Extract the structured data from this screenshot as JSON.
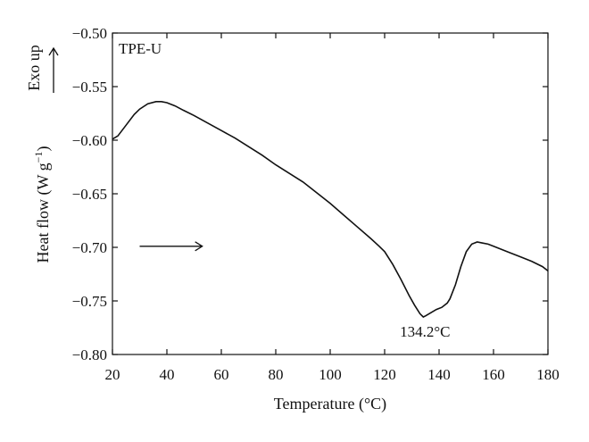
{
  "chart_data": {
    "type": "line",
    "title": "",
    "series_label": "TPE-U",
    "xlabel": "Temperature (°C)",
    "ylabel_main": "Heat flow (W g",
    "ylabel_sup": "−1",
    "ylabel_close": ")",
    "exo_label": "Exo up",
    "peak_label": "134.2°C",
    "peak": {
      "x": 134.2,
      "y": -0.765
    },
    "direction_arrow": {
      "x_start": 30,
      "x_end": 53,
      "y": -0.699
    },
    "xlim": [
      20,
      180
    ],
    "ylim": [
      -0.8,
      -0.5
    ],
    "xticks": [
      20,
      40,
      60,
      80,
      100,
      120,
      140,
      160,
      180
    ],
    "yticks": [
      -0.5,
      -0.55,
      -0.6,
      -0.65,
      -0.7,
      -0.75,
      -0.8
    ],
    "xtick_labels": [
      "20",
      "40",
      "60",
      "80",
      "100",
      "120",
      "140",
      "160",
      "180"
    ],
    "ytick_labels": [
      "−0.50",
      "−0.55",
      "−0.60",
      "−0.65",
      "−0.70",
      "−0.75",
      "−0.80"
    ],
    "grid": false,
    "x": [
      20,
      22,
      25,
      28,
      30,
      33,
      36,
      38,
      40,
      43,
      46,
      50,
      55,
      60,
      65,
      70,
      75,
      80,
      85,
      90,
      95,
      100,
      105,
      110,
      115,
      118,
      120,
      123,
      126,
      129,
      131,
      133,
      134.2,
      135,
      137,
      139,
      141,
      143,
      144,
      146,
      148,
      150,
      152,
      154,
      156,
      158,
      160,
      163,
      166,
      170,
      174,
      178,
      180
    ],
    "y": [
      -0.599,
      -0.596,
      -0.586,
      -0.576,
      -0.571,
      -0.566,
      -0.564,
      -0.564,
      -0.565,
      -0.568,
      -0.572,
      -0.577,
      -0.584,
      -0.591,
      -0.598,
      -0.606,
      -0.614,
      -0.623,
      -0.631,
      -0.639,
      -0.649,
      -0.659,
      -0.67,
      -0.681,
      -0.692,
      -0.699,
      -0.704,
      -0.716,
      -0.73,
      -0.745,
      -0.754,
      -0.762,
      -0.765,
      -0.764,
      -0.761,
      -0.758,
      -0.756,
      -0.752,
      -0.748,
      -0.735,
      -0.718,
      -0.704,
      -0.697,
      -0.695,
      -0.696,
      -0.697,
      -0.699,
      -0.702,
      -0.705,
      -0.709,
      -0.713,
      -0.718,
      -0.722
    ],
    "line_color": "#111111"
  }
}
